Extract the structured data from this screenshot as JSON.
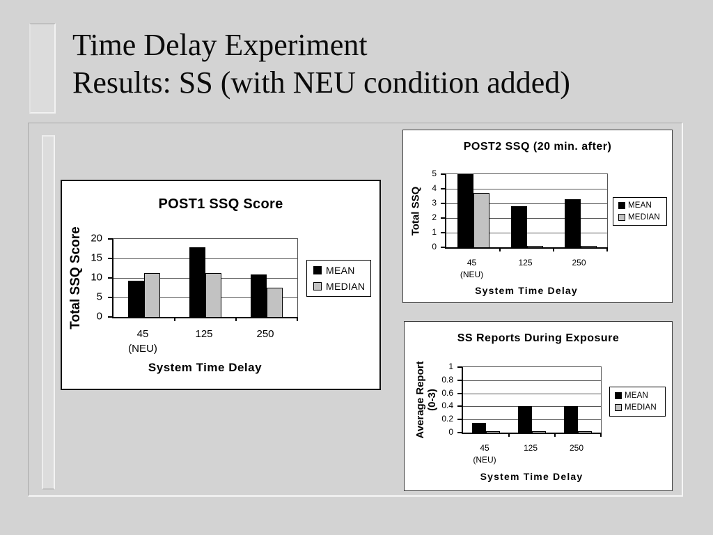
{
  "slide": {
    "title": "Time Delay Experiment\nResults: SS (with NEU condition added)"
  },
  "colors": {
    "background": "#d3d3d3",
    "panel": "#ffffff",
    "mean_bar": "#000000",
    "median_bar": "#c2c2c2",
    "gridline": "#555555"
  },
  "chart_data": [
    {
      "type": "bar",
      "title": "POST1 SSQ Score",
      "ylabel": "Total SSQ Score",
      "xlabel": "System Time Delay",
      "categories": [
        [
          "45",
          "(NEU)"
        ],
        [
          "125"
        ],
        [
          "250"
        ]
      ],
      "series": [
        {
          "name": "MEAN",
          "color": "#000000",
          "values": [
            9.3,
            17.9,
            10.9
          ]
        },
        {
          "name": "MEDIAN",
          "color": "#c2c2c2",
          "values": [
            11.3,
            11.3,
            7.5
          ]
        }
      ],
      "ylim": [
        0,
        20
      ],
      "yticks": [
        "0",
        "5",
        "10",
        "15",
        "20"
      ],
      "grid": true,
      "legend_position": "right"
    },
    {
      "type": "bar",
      "title": "POST2 SSQ (20 min. after)",
      "ylabel": "Total SSQ",
      "xlabel": "System Time Delay",
      "categories": [
        [
          "45",
          "(NEU)"
        ],
        [
          "125"
        ],
        [
          "250"
        ]
      ],
      "series": [
        {
          "name": "MEAN",
          "color": "#000000",
          "values": [
            5.0,
            2.8,
            3.3
          ]
        },
        {
          "name": "MEDIAN",
          "color": "#c2c2c2",
          "values": [
            3.7,
            0.1,
            0.1
          ]
        }
      ],
      "ylim": [
        0,
        5
      ],
      "yticks": [
        "0",
        "1",
        "2",
        "3",
        "4",
        "5"
      ],
      "grid": true,
      "legend_position": "right"
    },
    {
      "type": "bar",
      "title": "SS Reports During Exposure",
      "ylabel": "Average Report\n(0-3)",
      "xlabel": "System Time Delay",
      "categories": [
        [
          "45",
          "(NEU)"
        ],
        [
          "125"
        ],
        [
          "250"
        ]
      ],
      "series": [
        {
          "name": "MEAN",
          "color": "#000000",
          "values": [
            0.15,
            0.4,
            0.4
          ]
        },
        {
          "name": "MEDIAN",
          "color": "#c2c2c2",
          "values": [
            0.02,
            0.02,
            0.02
          ]
        }
      ],
      "ylim": [
        0,
        1
      ],
      "yticks": [
        "0",
        "0.2",
        "0.4",
        "0.6",
        "0.8",
        "1"
      ],
      "grid": true,
      "legend_position": "right"
    }
  ]
}
